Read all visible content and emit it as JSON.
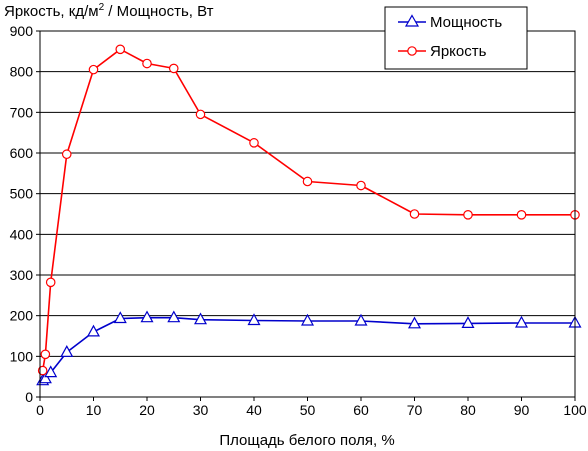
{
  "chart_data": {
    "type": "line",
    "ylabel_main": "Яркость, кд/м",
    "ylabel_sup": "2",
    "ylabel_rest": " / Мощность, Вт",
    "xlabel": "Площадь белого поля, %",
    "xlim": [
      0,
      100
    ],
    "ylim": [
      0,
      900
    ],
    "x_ticks": [
      0,
      10,
      20,
      30,
      40,
      50,
      60,
      70,
      80,
      90,
      100
    ],
    "y_ticks": [
      0,
      100,
      200,
      300,
      400,
      500,
      600,
      700,
      800,
      900
    ],
    "grid": true,
    "legend_position": "top-right",
    "series": [
      {
        "name": "Мощность",
        "color": "#0000cc",
        "marker": "triangle",
        "x": [
          0.5,
          1,
          2,
          5,
          10,
          15,
          20,
          25,
          30,
          40,
          50,
          60,
          70,
          80,
          90,
          100
        ],
        "values": [
          40,
          45,
          60,
          110,
          160,
          193,
          195,
          195,
          190,
          188,
          187,
          187,
          180,
          181,
          182,
          182
        ]
      },
      {
        "name": "Яркость",
        "color": "#ff0000",
        "marker": "circle",
        "x": [
          0.5,
          1,
          2,
          5,
          10,
          15,
          20,
          25,
          30,
          40,
          50,
          60,
          70,
          80,
          90,
          100
        ],
        "values": [
          65,
          105,
          282,
          597,
          805,
          855,
          820,
          808,
          695,
          625,
          530,
          520,
          450,
          448,
          448,
          448
        ]
      }
    ]
  }
}
